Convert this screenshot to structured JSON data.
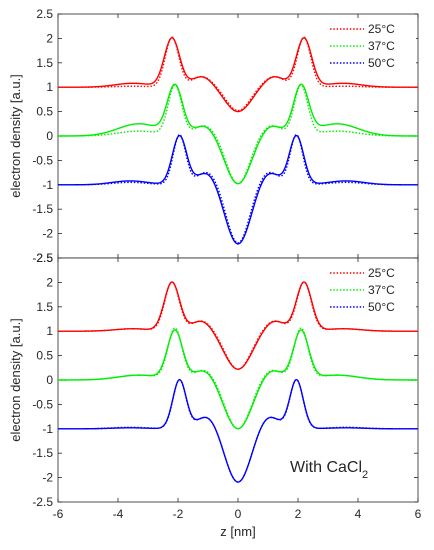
{
  "chart_data": [
    {
      "type": "line",
      "title": "",
      "xlabel": "",
      "ylabel": "electron density [a.u.]",
      "xlim": [
        -6,
        6
      ],
      "ylim": [
        -2.5,
        2.5
      ],
      "xticks": [
        -6,
        -4,
        -2,
        0,
        2,
        4,
        6
      ],
      "yticks": [
        2.5,
        2,
        1.5,
        1,
        0.5,
        0,
        -0.5,
        -1,
        -1.5,
        -2,
        -2.5
      ],
      "x_tick_labels_shown": false,
      "grid": false,
      "legend_position": "top-right",
      "series": [
        {
          "name": "25°C",
          "color": "#ff0000",
          "offset": 1,
          "solid": {
            "sw": 0.85,
            "sc": 0.42,
            "peakH": 1.0,
            "tailA": 0.08,
            "centerD": 0.5
          },
          "dotted": {
            "sw": 0.75,
            "sc": 0.38,
            "peakH": 1.02,
            "tailA": 0.02,
            "centerD": 0.48
          }
        },
        {
          "name": "37°C",
          "color": "#00ee00",
          "offset": 0,
          "solid": {
            "sw": 0.85,
            "sc": 0.42,
            "peakH": 1.0,
            "tailA": 0.25,
            "centerD": 0.98
          },
          "dotted": {
            "sw": 0.75,
            "sc": 0.38,
            "peakH": 1.02,
            "tailA": 0.1,
            "centerD": 0.98
          }
        },
        {
          "name": "50°C",
          "color": "#0000ff",
          "offset": -1,
          "solid": {
            "sw": 0.85,
            "sc": 0.42,
            "peakH": 1.0,
            "tailA": 0.08,
            "centerD": 1.22
          },
          "dotted": {
            "sw": 0.75,
            "sc": 0.38,
            "peakH": 1.02,
            "tailA": 0.05,
            "centerD": 1.2
          }
        }
      ],
      "peaks": [
        {
          "series": "25°C",
          "x": [
            -2.2,
            2.2
          ],
          "y": 2.0
        },
        {
          "series": "37°C",
          "x": [
            -2.05,
            2.05
          ],
          "y": 1.0
        },
        {
          "series": "50°C",
          "x": [
            -1.95,
            1.95
          ],
          "y": 0.0
        }
      ],
      "minima": [
        {
          "series": "25°C",
          "x": 0,
          "y": 0.5
        },
        {
          "series": "37°C",
          "x": 0,
          "y": -0.98
        },
        {
          "series": "50°C",
          "x": 0,
          "y": -2.2
        }
      ]
    },
    {
      "type": "line",
      "title": "",
      "xlabel": "z [nm]",
      "ylabel": "electron density [a.u.]",
      "xlim": [
        -6,
        6
      ],
      "ylim": [
        -2.5,
        2.5
      ],
      "xticks": [
        -6,
        -4,
        -2,
        0,
        2,
        4,
        6
      ],
      "yticks": [
        2.5,
        2,
        1.5,
        1,
        0.5,
        0,
        -0.5,
        -1,
        -1.5,
        -2,
        -2.5
      ],
      "x_tick_labels_shown": true,
      "grid": false,
      "legend_position": "top-right",
      "annotation": {
        "text": "With CaCl",
        "subscript": "2"
      },
      "series": [
        {
          "name": "25°C",
          "color": "#ff0000",
          "offset": 1,
          "solid": {
            "sw": 0.85,
            "sc": 0.45,
            "peakH": 1.0,
            "tailA": 0.05,
            "centerD": 0.78
          },
          "dotted": {
            "sw": 0.8,
            "sc": 0.42,
            "peakH": 1.0,
            "tailA": 0.05,
            "centerD": 0.78
          }
        },
        {
          "name": "37°C",
          "color": "#00ee00",
          "offset": 0,
          "solid": {
            "sw": 0.85,
            "sc": 0.45,
            "peakH": 1.0,
            "tailA": 0.1,
            "centerD": 1.0
          },
          "dotted": {
            "sw": 0.78,
            "sc": 0.42,
            "peakH": 1.04,
            "tailA": 0.1,
            "centerD": 1.0
          }
        },
        {
          "name": "50°C",
          "color": "#0000ff",
          "offset": -1,
          "solid": {
            "sw": 0.8,
            "sc": 0.42,
            "peakH": 1.0,
            "tailA": 0.02,
            "centerD": 1.1
          },
          "dotted": {
            "sw": 0.78,
            "sc": 0.42,
            "peakH": 1.0,
            "tailA": 0.03,
            "centerD": 1.1
          }
        }
      ],
      "peaks": [
        {
          "series": "25°C",
          "x": [
            -2.2,
            2.2
          ],
          "y": 2.0
        },
        {
          "series": "37°C",
          "x": [
            -2.1,
            2.1
          ],
          "y": 1.0
        },
        {
          "series": "50°C",
          "x": [
            -1.95,
            1.95
          ],
          "y": 0.0
        }
      ],
      "minima": [
        {
          "series": "25°C",
          "x": 0,
          "y": 0.22
        },
        {
          "series": "37°C",
          "x": 0,
          "y": -1.0
        },
        {
          "series": "50°C",
          "x": 0,
          "y": -2.1
        }
      ]
    }
  ]
}
